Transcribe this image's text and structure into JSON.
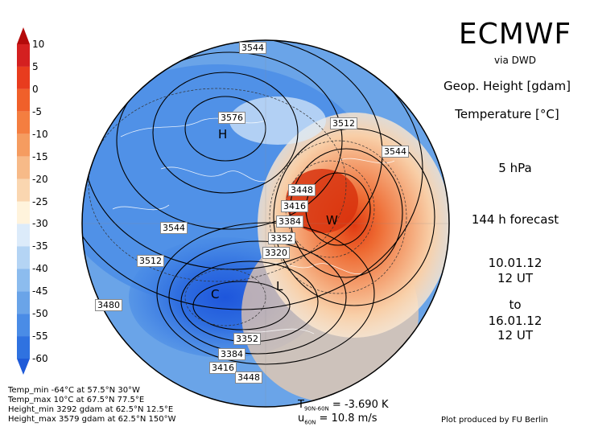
{
  "title": "ECMWF",
  "source": "via DWD",
  "variables": [
    "Geop. Height [gdam]",
    "Temperature [°C]"
  ],
  "level": "5 hPa",
  "forecast": "144 h forecast",
  "init_date": "10.01.12",
  "init_time": "12 UT",
  "to_label": "to",
  "valid_date": "16.01.12",
  "valid_time": "12 UT",
  "colorbar": {
    "labels": [
      "10",
      "5",
      "0",
      "-5",
      "-10",
      "-15",
      "-20",
      "-25",
      "-30",
      "-35",
      "-40",
      "-45",
      "-50",
      "-55",
      "-60"
    ],
    "colors": [
      "#b40a0a",
      "#d42020",
      "#e83c1e",
      "#f0602a",
      "#f47e40",
      "#f59c60",
      "#f7ba88",
      "#fad6b0",
      "#fff3dc",
      "#dcebfa",
      "#b4d4f4",
      "#8cbcee",
      "#6aa4e8",
      "#4a8ce6",
      "#2f72e0",
      "#1e5ad8"
    ]
  },
  "stats": [
    "Temp_min -64°C at 57.5°N 30°W",
    "Temp_max 10°C at 67.5°N 77.5°E",
    "Height_min 3292 gdam at 62.5°N 12.5°E",
    "Height_max 3579 gdam at 62.5°N 150°W"
  ],
  "indices": {
    "t_label": "T",
    "t_sub": "90N-60N",
    "t_value": "= -3.690 K",
    "u_label": "u",
    "u_sub": "60N",
    "u_value": "= 10.8 m/s"
  },
  "credit": "Plot produced by FU Berlin",
  "contour_labels": [
    "3544",
    "3576",
    "3512",
    "3544",
    "3448",
    "3416",
    "3384",
    "3352",
    "3320",
    "3544",
    "3512",
    "3480",
    "3352",
    "3384",
    "3416",
    "3448"
  ],
  "markers": [
    "H",
    "W",
    "C",
    "L"
  ]
}
